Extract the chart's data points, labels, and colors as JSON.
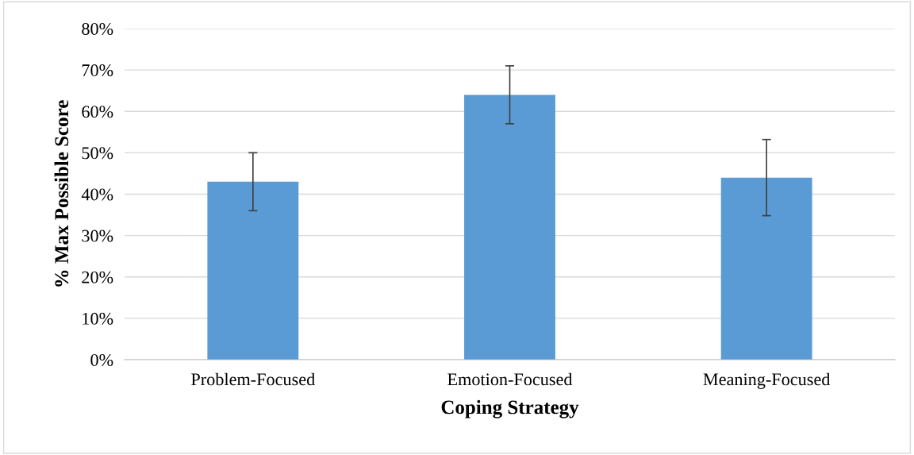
{
  "chart_data": {
    "type": "bar",
    "xlabel": "Coping Strategy",
    "ylabel": "% Max Possible Score",
    "categories": [
      "Problem-Focused",
      "Emotion-Focused",
      "Meaning-Focused"
    ],
    "values": [
      43,
      64,
      44
    ],
    "color": "#5b9bd5",
    "errors": [
      7,
      7,
      9.2
    ],
    "ylim": [
      0,
      80
    ],
    "yticks": [
      {
        "value": 0,
        "label": "0%"
      },
      {
        "value": 10,
        "label": "10%"
      },
      {
        "value": 20,
        "label": "20%"
      },
      {
        "value": 30,
        "label": "30%"
      },
      {
        "value": 40,
        "label": "40%"
      },
      {
        "value": 50,
        "label": "50%"
      },
      {
        "value": 60,
        "label": "60%"
      },
      {
        "value": 70,
        "label": "70%"
      },
      {
        "value": 80,
        "label": "80%"
      }
    ],
    "grid": "y",
    "legend": false
  }
}
